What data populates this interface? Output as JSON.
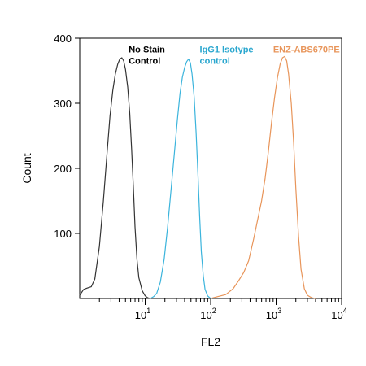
{
  "chart_data": {
    "type": "line",
    "title": "",
    "xlabel": "FL2",
    "ylabel": "Count",
    "xscale": "log",
    "xlim": [
      1,
      10000
    ],
    "ylim": [
      0,
      400
    ],
    "x_ticks": [
      {
        "value": 10,
        "base": "10",
        "exp": "1"
      },
      {
        "value": 100,
        "base": "10",
        "exp": "2"
      },
      {
        "value": 1000,
        "base": "10",
        "exp": "3"
      },
      {
        "value": 10000,
        "base": "10",
        "exp": "4"
      }
    ],
    "y_ticks": [
      {
        "value": 100,
        "label": "100"
      },
      {
        "value": 200,
        "label": "200"
      },
      {
        "value": 300,
        "label": "300"
      },
      {
        "value": 400,
        "label": "400"
      }
    ],
    "grid": false,
    "legend": "none",
    "annotations": [
      {
        "lines": [
          "No Stain",
          "Control"
        ],
        "color": "#000000",
        "x": 5.6,
        "y": 378
      },
      {
        "lines": [
          "IgG1 Isotype",
          "control"
        ],
        "color": "#2aa7cf",
        "x": 68,
        "y": 378
      },
      {
        "lines": [
          "ENZ-ABS670PE"
        ],
        "color": "#e8955a",
        "x": 900,
        "y": 378
      }
    ],
    "series": [
      {
        "color": "#333333",
        "x": [
          1,
          1.15,
          1.3,
          1.5,
          1.7,
          2.0,
          2.3,
          2.6,
          2.9,
          3.2,
          3.5,
          3.8,
          4.1,
          4.4,
          4.7,
          5.0,
          5.4,
          5.8,
          6.2,
          6.6,
          7.0,
          7.5,
          8.0,
          9.0,
          10.0,
          11.0,
          12.0
        ],
        "y": [
          5,
          14,
          16,
          18,
          30,
          80,
          150,
          220,
          280,
          320,
          345,
          360,
          368,
          370,
          365,
          352,
          325,
          285,
          230,
          170,
          110,
          60,
          32,
          12,
          4,
          1,
          0
        ]
      },
      {
        "color": "#3bb4dc",
        "x": [
          12,
          13.5,
          15,
          17,
          19.5,
          22,
          25,
          28,
          31,
          34,
          37,
          40,
          43,
          46,
          49,
          52,
          56,
          60,
          64,
          68,
          72,
          77,
          82,
          90,
          100
        ],
        "y": [
          0,
          3,
          8,
          25,
          60,
          110,
          170,
          225,
          275,
          315,
          340,
          355,
          364,
          368,
          362,
          345,
          310,
          255,
          190,
          125,
          72,
          35,
          14,
          4,
          0
        ]
      },
      {
        "color": "#e8955a",
        "x": [
          100,
          130,
          170,
          220,
          270,
          320,
          380,
          450,
          520,
          600,
          680,
          760,
          850,
          950,
          1050,
          1150,
          1250,
          1350,
          1450,
          1550,
          1700,
          1850,
          2000,
          2200,
          2400,
          2700,
          3000,
          3500,
          4000
        ],
        "y": [
          0,
          3,
          6,
          15,
          28,
          40,
          58,
          90,
          120,
          150,
          185,
          225,
          270,
          310,
          340,
          360,
          370,
          372,
          365,
          345,
          300,
          240,
          170,
          95,
          45,
          15,
          5,
          1,
          0
        ]
      }
    ]
  }
}
